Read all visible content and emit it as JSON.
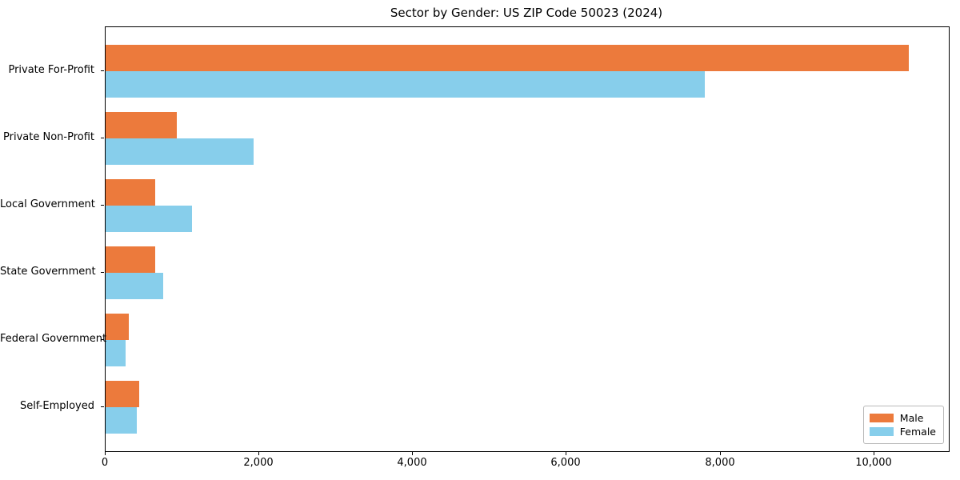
{
  "chart_data": {
    "type": "bar",
    "orientation": "horizontal",
    "title": "Sector by Gender: US ZIP Code 50023 (2024)",
    "xlabel": "",
    "ylabel": "",
    "categories": [
      "Private For-Profit",
      "Private Non-Profit",
      "Local Government",
      "State Government",
      "Federal Government",
      "Self-Employed"
    ],
    "series": [
      {
        "name": "Male",
        "color": "#EC7A3C",
        "values": [
          10450,
          930,
          650,
          650,
          300,
          440
        ]
      },
      {
        "name": "Female",
        "color": "#87CEEB",
        "values": [
          7800,
          1930,
          1120,
          750,
          260,
          410
        ]
      }
    ],
    "xlim": [
      0,
      10970
    ],
    "xticks": [
      0,
      2000,
      4000,
      6000,
      8000,
      10000
    ],
    "xtick_labels": [
      "0",
      "2,000",
      "4,000",
      "6,000",
      "8,000",
      "10,000"
    ],
    "grid": false,
    "legend": {
      "position": "lower right"
    },
    "frame_color": "#000000",
    "background_color": "#ffffff"
  }
}
